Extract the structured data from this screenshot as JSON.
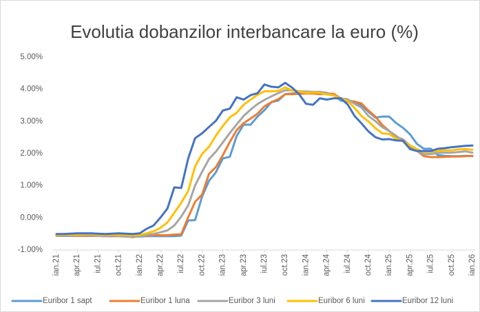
{
  "chart_data": {
    "type": "line",
    "title": "Evolutia dobanzilor interbancare la euro (%)",
    "categories": [
      "ian.21",
      null,
      null,
      "apr.21",
      null,
      null,
      "iul.21",
      null,
      null,
      "oct.21",
      null,
      null,
      "ian.22",
      null,
      null,
      "apr.22",
      null,
      null,
      "iul.22",
      null,
      null,
      "oct.22",
      null,
      null,
      "ian.23",
      null,
      null,
      "apr.23",
      null,
      null,
      "iul.23",
      null,
      null,
      "oct.23",
      null,
      null,
      "ian.24",
      null,
      null,
      "apr.24",
      null,
      null,
      "iul.24",
      null,
      null,
      "oct.24",
      null,
      null,
      "ian.25",
      null,
      null,
      "apr.25",
      null,
      null,
      "iul.25",
      null,
      null,
      "oct.25",
      null,
      null,
      "ian.26"
    ],
    "ylim": [
      -1,
      5
    ],
    "yticks": [
      {
        "value": -1,
        "label": "-1.00%"
      },
      {
        "value": 0,
        "label": "0.00%"
      },
      {
        "value": 1,
        "label": "1.00%"
      },
      {
        "value": 2,
        "label": "2.00%"
      },
      {
        "value": 3,
        "label": "3.00%"
      },
      {
        "value": 4,
        "label": "4.00%"
      },
      {
        "value": 5,
        "label": "5.00%"
      }
    ],
    "grid": false,
    "legend": "bottom",
    "series": [
      {
        "name": "Euribor 1 sapt",
        "color": "#5b9bd5",
        "values": [
          -0.56,
          -0.56,
          -0.56,
          -0.56,
          -0.56,
          -0.56,
          -0.56,
          -0.57,
          -0.57,
          -0.57,
          -0.58,
          -0.58,
          -0.58,
          -0.57,
          -0.57,
          -0.57,
          -0.57,
          -0.57,
          -0.55,
          -0.08,
          -0.07,
          0.66,
          1.15,
          1.42,
          1.85,
          1.9,
          2.55,
          2.9,
          2.9,
          3.15,
          3.35,
          3.6,
          3.65,
          3.85,
          3.87,
          3.88,
          3.88,
          3.88,
          3.87,
          3.87,
          3.85,
          3.65,
          3.62,
          3.6,
          3.5,
          3.3,
          3.12,
          3.15,
          3.15,
          2.95,
          2.8,
          2.6,
          2.3,
          2.15,
          2.15,
          1.95,
          1.93,
          1.92,
          1.92,
          1.93,
          1.92
        ]
      },
      {
        "name": "Euribor 1 luna",
        "color": "#ed7d31",
        "values": [
          -0.56,
          -0.55,
          -0.55,
          -0.56,
          -0.56,
          -0.55,
          -0.56,
          -0.56,
          -0.56,
          -0.56,
          -0.57,
          -0.6,
          -0.56,
          -0.55,
          -0.54,
          -0.54,
          -0.54,
          -0.52,
          -0.51,
          0.02,
          0.5,
          0.72,
          1.37,
          1.58,
          1.95,
          2.36,
          2.73,
          2.95,
          3.09,
          3.24,
          3.47,
          3.6,
          3.69,
          3.85,
          3.85,
          3.86,
          3.87,
          3.87,
          3.85,
          3.87,
          3.86,
          3.72,
          3.64,
          3.62,
          3.56,
          3.34,
          3.15,
          2.89,
          2.7,
          2.55,
          2.38,
          2.17,
          2.09,
          1.92,
          1.89,
          1.89,
          1.9,
          1.91,
          1.91,
          1.92,
          1.93
        ]
      },
      {
        "name": "Euribor 3 luni",
        "color": "#a5a5a5",
        "values": [
          -0.55,
          -0.54,
          -0.54,
          -0.54,
          -0.54,
          -0.54,
          -0.55,
          -0.55,
          -0.54,
          -0.55,
          -0.57,
          -0.58,
          -0.56,
          -0.53,
          -0.5,
          -0.45,
          -0.39,
          -0.24,
          0.04,
          0.39,
          1.01,
          1.43,
          1.83,
          2.06,
          2.35,
          2.64,
          2.91,
          3.17,
          3.37,
          3.54,
          3.67,
          3.78,
          3.88,
          3.97,
          3.97,
          3.94,
          3.93,
          3.92,
          3.92,
          3.89,
          3.81,
          3.72,
          3.69,
          3.55,
          3.43,
          3.17,
          3.01,
          2.82,
          2.7,
          2.53,
          2.44,
          2.25,
          2.09,
          1.98,
          1.99,
          2.02,
          2.03,
          2.03,
          2.05,
          2.07,
          2.03
        ]
      },
      {
        "name": "Euribor 6 luni",
        "color": "#ffc000",
        "values": [
          -0.53,
          -0.52,
          -0.52,
          -0.52,
          -0.51,
          -0.51,
          -0.52,
          -0.53,
          -0.52,
          -0.53,
          -0.53,
          -0.54,
          -0.53,
          -0.48,
          -0.42,
          -0.31,
          -0.14,
          0.16,
          0.47,
          0.84,
          1.6,
          1.99,
          2.21,
          2.56,
          2.86,
          3.13,
          3.27,
          3.52,
          3.68,
          3.83,
          3.94,
          3.94,
          3.95,
          4.06,
          3.96,
          3.93,
          3.89,
          3.9,
          3.89,
          3.84,
          3.81,
          3.71,
          3.64,
          3.42,
          3.17,
          3.0,
          2.79,
          2.63,
          2.61,
          2.46,
          2.39,
          2.25,
          2.14,
          2.05,
          2.06,
          2.08,
          2.1,
          2.1,
          2.13,
          2.14,
          2.12
        ]
      },
      {
        "name": "Euribor 12 luni",
        "color": "#4472c4",
        "values": [
          -0.5,
          -0.5,
          -0.49,
          -0.48,
          -0.48,
          -0.48,
          -0.49,
          -0.5,
          -0.49,
          -0.48,
          -0.49,
          -0.5,
          -0.48,
          -0.34,
          -0.24,
          0.01,
          0.29,
          0.95,
          0.93,
          1.85,
          2.48,
          2.63,
          2.83,
          3.02,
          3.34,
          3.4,
          3.75,
          3.68,
          3.82,
          3.88,
          4.15,
          4.08,
          4.06,
          4.2,
          4.05,
          3.85,
          3.55,
          3.52,
          3.72,
          3.68,
          3.72,
          3.72,
          3.53,
          3.17,
          2.94,
          2.69,
          2.51,
          2.44,
          2.45,
          2.41,
          2.4,
          2.14,
          2.08,
          2.08,
          2.08,
          2.15,
          2.17,
          2.2,
          2.22,
          2.24,
          2.25
        ]
      }
    ]
  }
}
